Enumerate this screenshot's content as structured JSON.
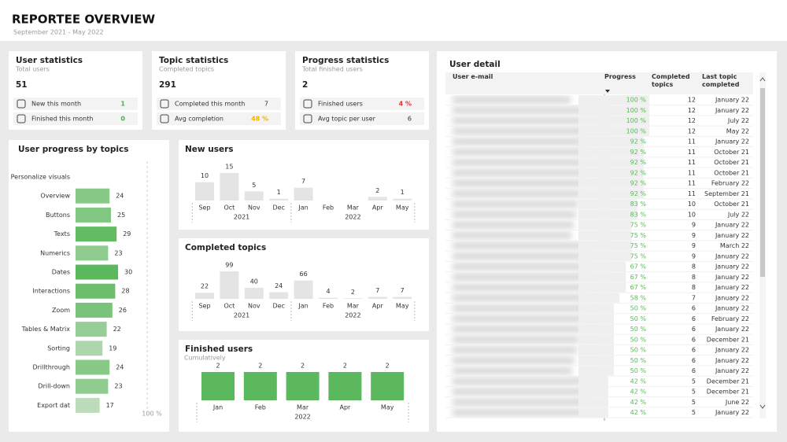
{
  "header": {
    "title": "REPORTEE OVERVIEW",
    "subtitle": "September 2021 - May 2022"
  },
  "cards": [
    {
      "title": "User statistics",
      "subtitle": "Total users",
      "value": 51,
      "rows": [
        {
          "label": "New this month",
          "value": 1,
          "color": "#4caf50"
        },
        {
          "label": "Finished this month",
          "value": 0,
          "color": "#4caf50"
        }
      ]
    },
    {
      "title": "Topic statistics",
      "subtitle": "Completed topics",
      "value": 291,
      "rows": [
        {
          "label": "Completed this month",
          "value": 7
        },
        {
          "label": "Avg completion",
          "value": "48 %",
          "color": "#f0b400"
        }
      ]
    },
    {
      "title": "Progress statistics",
      "subtitle": "Total finished users",
      "value": 2,
      "rows": [
        {
          "label": "Finished users",
          "value": "4 %",
          "color": "#e03030"
        },
        {
          "label": "Avg topic per user",
          "value": 6
        }
      ]
    }
  ],
  "user_progress": {
    "type": "bar",
    "title": "User progress by topics",
    "categories": [
      "Personalize visuals",
      "Overview",
      "Buttons",
      "Texts",
      "Numerics",
      "Dates",
      "Interactions",
      "Zoom",
      "Tables & Matrix",
      "Sorting",
      "Drillthrough",
      "Drill-down",
      "Export dat"
    ],
    "values": [
      null,
      24,
      25,
      29,
      23,
      30,
      28,
      26,
      22,
      19,
      24,
      23,
      17
    ],
    "colors": [
      "#bcdcbc",
      "#5cb85c"
    ],
    "reference_label": "100 %"
  },
  "new_users": {
    "type": "bar",
    "title": "New users",
    "color": "#e4e4e4",
    "groups": [
      {
        "label": "2021",
        "categories": [
          "Sep",
          "Oct",
          "Nov",
          "Dec"
        ],
        "values": [
          10,
          15,
          5,
          1
        ]
      },
      {
        "label": "2022",
        "categories": [
          "Jan",
          "Feb",
          "Mar",
          "Apr",
          "May"
        ],
        "values": [
          7,
          null,
          null,
          2,
          1
        ]
      }
    ]
  },
  "completed_topics": {
    "type": "bar",
    "title": "Completed topics",
    "color": "#e4e4e4",
    "groups": [
      {
        "label": "2021",
        "categories": [
          "Sep",
          "Oct",
          "Nov",
          "Dec"
        ],
        "values": [
          22,
          99,
          40,
          24
        ]
      },
      {
        "label": "2022",
        "categories": [
          "Jan",
          "Feb",
          "Mar",
          "Apr",
          "May"
        ],
        "values": [
          66,
          4,
          2,
          7,
          7
        ]
      }
    ]
  },
  "finished_users": {
    "type": "bar",
    "title": "Finished users",
    "subtitle": "Cumulatively",
    "color": "#5cb85c",
    "groups": [
      {
        "label": "2022",
        "categories": [
          "Jan",
          "Feb",
          "Mar",
          "Apr",
          "May"
        ],
        "values": [
          2,
          2,
          2,
          2,
          2
        ]
      }
    ]
  },
  "user_detail": {
    "title": "User detail",
    "columns": [
      "User e-mail",
      "Progress",
      "Completed topics",
      "Last topic completed"
    ],
    "progress": {
      "values": [
        100,
        100,
        100,
        100,
        92,
        92,
        92,
        92,
        92,
        92,
        83,
        83,
        75,
        75,
        75,
        75,
        67,
        67,
        67,
        58,
        50,
        50,
        50,
        50,
        50,
        50,
        50,
        42,
        42,
        42,
        42
      ],
      "value_labels": [
        "100 %",
        "100 %",
        "100 %",
        "100 %",
        "92 %",
        "92 %",
        "92 %",
        "92 %",
        "92 %",
        "92 %",
        "83 %",
        "83 %",
        "75 %",
        "75 %",
        "75 %",
        "75 %",
        "67 %",
        "67 %",
        "67 %",
        "58 %",
        "50 %",
        "50 %",
        "50 %",
        "50 %",
        "50 %",
        "50 %",
        "50 %",
        "42 %",
        "42 %",
        "42 %",
        "42 %"
      ],
      "color": "#5cb85c"
    },
    "completed_topics": [
      12,
      12,
      12,
      12,
      11,
      11,
      11,
      11,
      11,
      11,
      10,
      10,
      9,
      9,
      9,
      9,
      8,
      8,
      8,
      7,
      6,
      6,
      6,
      6,
      6,
      6,
      6,
      5,
      5,
      5,
      5
    ],
    "last_topic_completed": [
      "January 22",
      "January 22",
      "July 22",
      "May 22",
      "January 22",
      "October 21",
      "October 21",
      "October 21",
      "February 22",
      "September 21",
      "October 21",
      "July 22",
      "January 22",
      "January 22",
      "March 22",
      "January 22",
      "January 22",
      "January 22",
      "January 22",
      "January 22",
      "January 22",
      "February 22",
      "January 22",
      "December 21",
      "January 22",
      "January 22",
      "January 22",
      "December 21",
      "December 21",
      "June 22",
      "January 22"
    ]
  }
}
